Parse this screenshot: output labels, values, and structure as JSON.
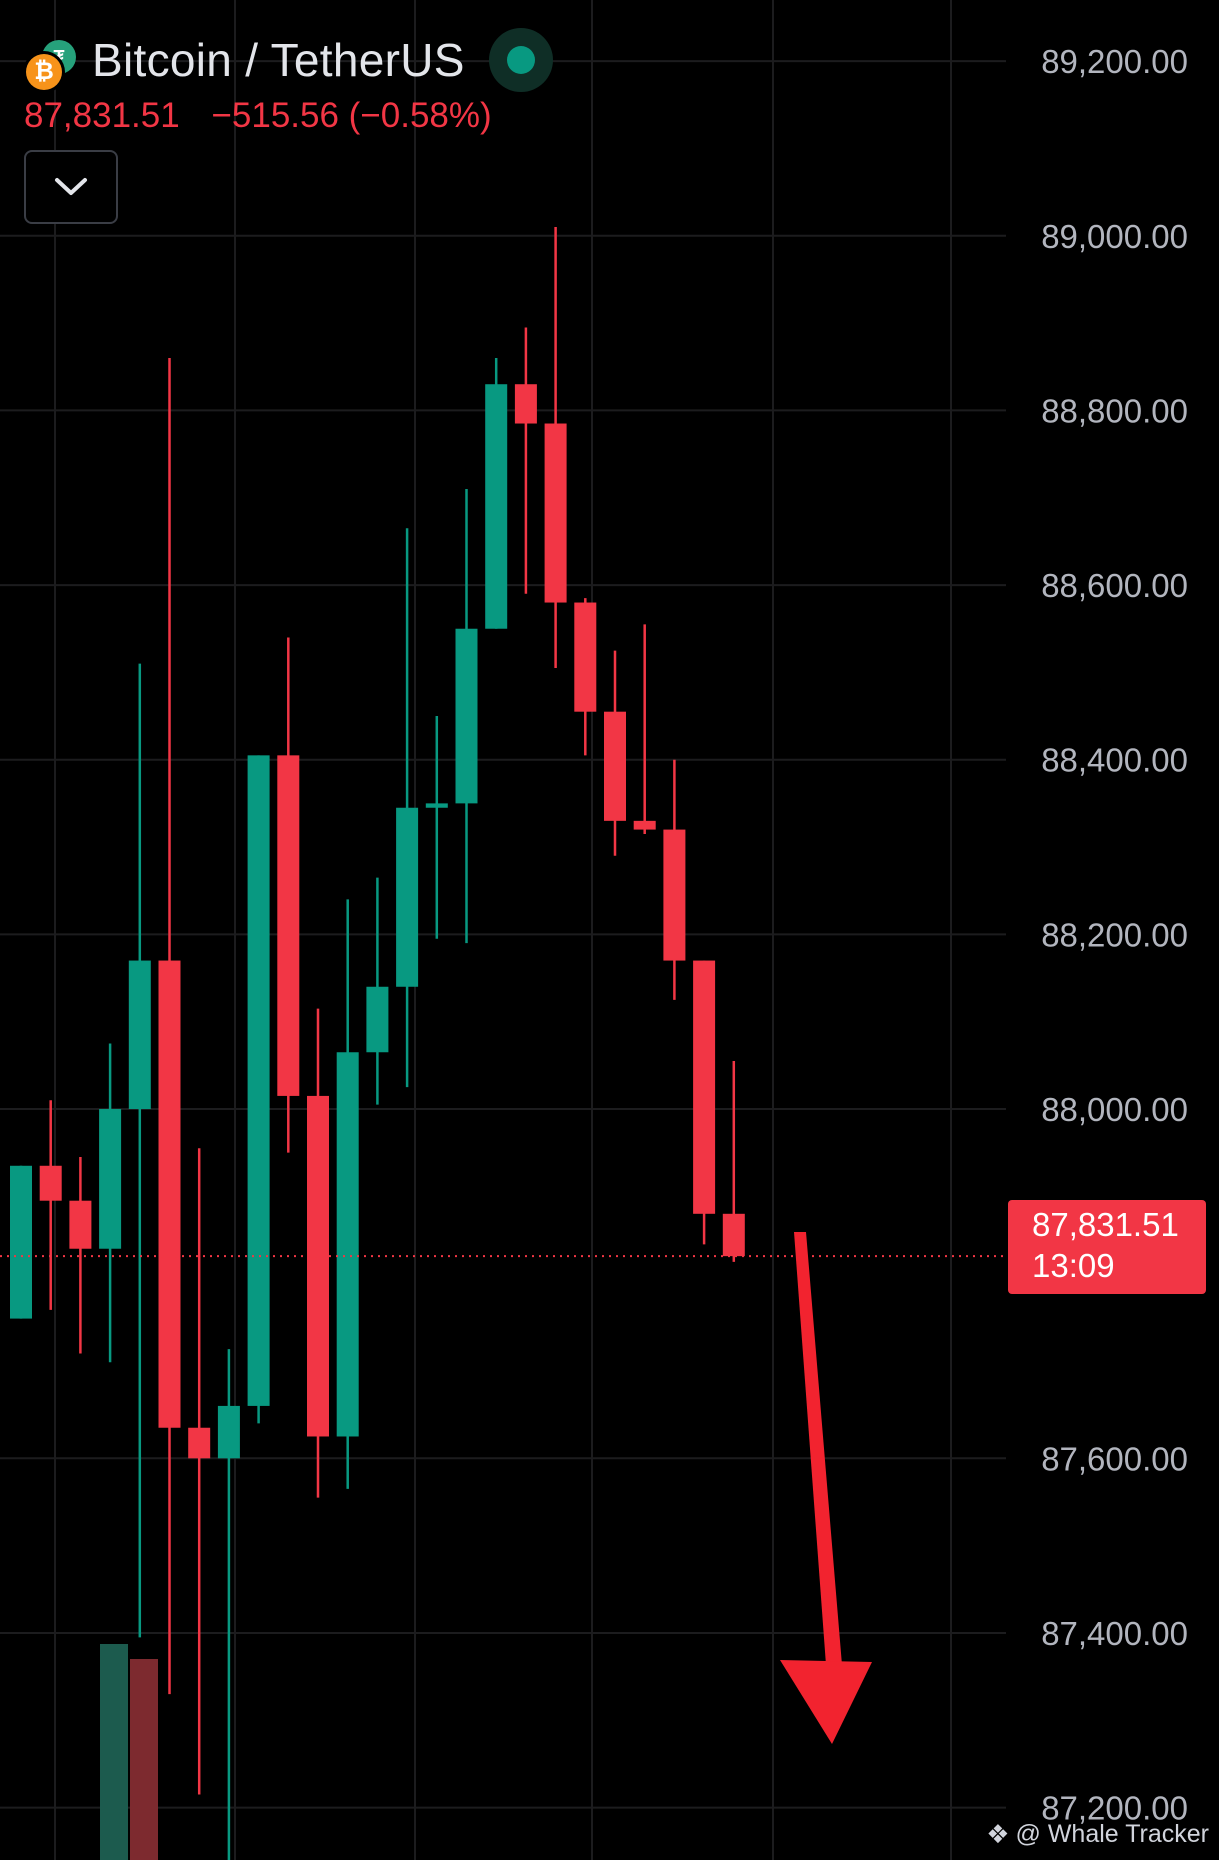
{
  "header": {
    "pair_title": "Bitcoin / TetherUS",
    "last_price": "87,831.51",
    "change": "−515.56 (−0.58%)",
    "base_icon": "bitcoin-icon",
    "quote_icon": "tether-icon",
    "status_icon": "market-open-dot-icon",
    "collapse_icon": "chevron-down-icon"
  },
  "current_price_tag": {
    "price": "87,831.51",
    "countdown": "13:09"
  },
  "watermark": {
    "text": "@ Whale Tracker",
    "icon": "binance-logo-icon"
  },
  "colors": {
    "background": "#000000",
    "up": "#089981",
    "down": "#f23645",
    "grid": "#1c1c1e",
    "axis_text": "#b2b5be",
    "arrow": "#f2232f"
  },
  "chart_data": {
    "type": "candlestick",
    "symbol": "Bitcoin / TetherUS",
    "ylim": [
      87140,
      89270
    ],
    "y_ticks": [
      "89,200.00",
      "89,000.00",
      "88,800.00",
      "88,600.00",
      "88,400.00",
      "88,200.00",
      "88,000.00",
      "87,600.00",
      "87,400.00",
      "87,200.00"
    ],
    "y_tick_values": [
      89200,
      89000,
      88800,
      88600,
      88400,
      88200,
      88000,
      87600,
      87400,
      87200
    ],
    "current_price": 87831.51,
    "grid": true,
    "candles": [
      {
        "open": 87760,
        "high": 87935,
        "low": 87760,
        "close": 87935
      },
      {
        "open": 87935,
        "high": 88010,
        "low": 87770,
        "close": 87895
      },
      {
        "open": 87895,
        "high": 87945,
        "low": 87720,
        "close": 87840
      },
      {
        "open": 87840,
        "high": 88075,
        "low": 87710,
        "close": 88000
      },
      {
        "open": 88000,
        "high": 88510,
        "low": 87395,
        "close": 88170
      },
      {
        "open": 88170,
        "high": 88860,
        "low": 87330,
        "close": 87635
      },
      {
        "open": 87635,
        "high": 87955,
        "low": 87215,
        "close": 87600
      },
      {
        "open": 87600,
        "high": 87725,
        "low": 87125,
        "close": 87660
      },
      {
        "open": 87660,
        "high": 88405,
        "low": 87640,
        "close": 88405
      },
      {
        "open": 88405,
        "high": 88540,
        "low": 87950,
        "close": 88015
      },
      {
        "open": 88015,
        "high": 88115,
        "low": 87555,
        "close": 87625
      },
      {
        "open": 87625,
        "high": 88240,
        "low": 87565,
        "close": 88065
      },
      {
        "open": 88065,
        "high": 88265,
        "low": 88005,
        "close": 88140
      },
      {
        "open": 88140,
        "high": 88665,
        "low": 88025,
        "close": 88345
      },
      {
        "open": 88345,
        "high": 88450,
        "low": 88195,
        "close": 88350
      },
      {
        "open": 88350,
        "high": 88710,
        "low": 88190,
        "close": 88550
      },
      {
        "open": 88550,
        "high": 88860,
        "low": 88550,
        "close": 88830
      },
      {
        "open": 88830,
        "high": 88895,
        "low": 88590,
        "close": 88785
      },
      {
        "open": 88785,
        "high": 89010,
        "low": 88505,
        "close": 88580
      },
      {
        "open": 88580,
        "high": 88585,
        "low": 88405,
        "close": 88455
      },
      {
        "open": 88455,
        "high": 88525,
        "low": 88290,
        "close": 88330
      },
      {
        "open": 88330,
        "high": 88555,
        "low": 88315,
        "close": 88320
      },
      {
        "open": 88320,
        "high": 88400,
        "low": 88125,
        "close": 88170
      },
      {
        "open": 88170,
        "high": 88170,
        "low": 87845,
        "close": 87880
      },
      {
        "open": 87880,
        "high": 88055,
        "low": 87825,
        "close": 87831.51
      }
    ],
    "volume": [
      {
        "value": 0.72,
        "direction": "up"
      },
      {
        "value": 0.67,
        "direction": "down"
      }
    ],
    "annotation": {
      "type": "arrow",
      "direction": "down",
      "color": "#f2232f"
    }
  }
}
